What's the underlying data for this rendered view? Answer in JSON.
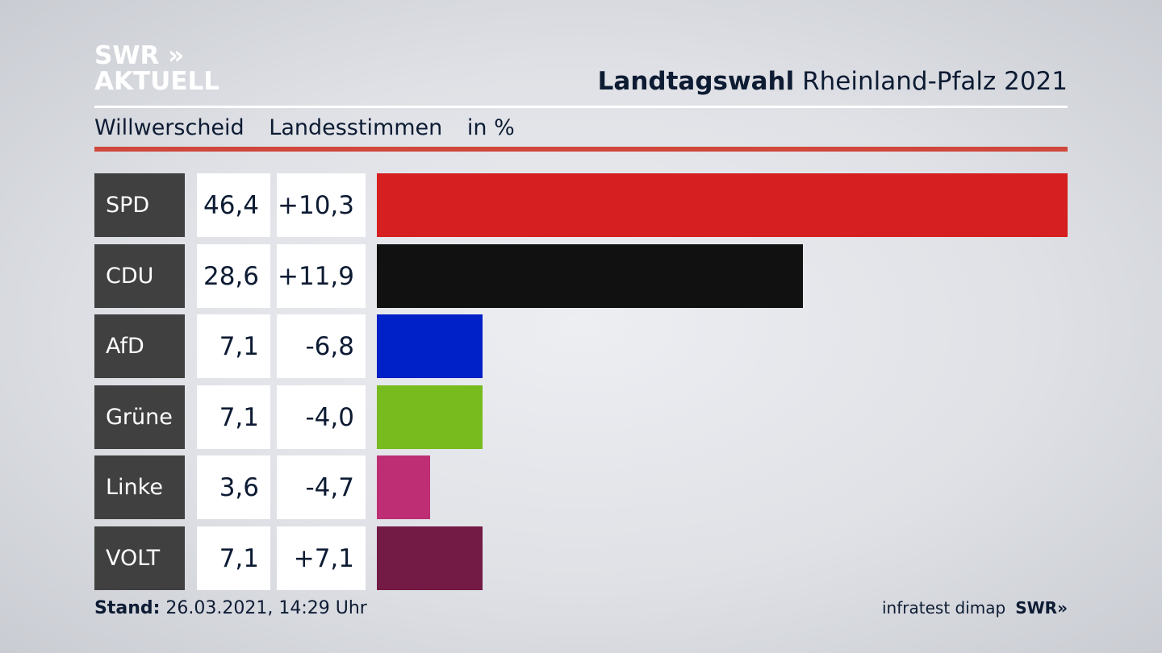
{
  "logo": {
    "line1": "SWR »",
    "line2": "AKTUELL"
  },
  "title": {
    "bold": "Landtagswahl",
    "rest": "Rheinland-Pfalz 2021"
  },
  "subtitle": {
    "place": "Willwerscheid",
    "kind": "Landesstimmen",
    "unit": "in %"
  },
  "footer": {
    "stand_label": "Stand:",
    "stand_value": "26.03.2021, 14:29 Uhr",
    "source": "infratest dimap",
    "brand": "SWR»"
  },
  "colors": {
    "accent_rule": "#d0473b",
    "label_bg": "#404040"
  },
  "chart_data": {
    "type": "bar",
    "orientation": "horizontal",
    "categories": [
      "SPD",
      "CDU",
      "AfD",
      "Grüne",
      "Linke",
      "VOLT"
    ],
    "values": [
      46.4,
      28.6,
      7.1,
      7.1,
      3.6,
      7.1
    ],
    "value_labels": [
      "46,4",
      "28,6",
      "7,1",
      "7,1",
      "3,6",
      "7,1"
    ],
    "diffs": [
      10.3,
      11.9,
      -6.8,
      -4.0,
      -4.7,
      7.1
    ],
    "diff_labels": [
      "+10,3",
      "+11,9",
      "-6,8",
      "-4,0",
      "-4,7",
      "+7,1"
    ],
    "colors": [
      "#d61f20",
      "#111111",
      "#0020c8",
      "#78bb1e",
      "#be2e74",
      "#731a45"
    ],
    "xlim": [
      0,
      46.4
    ],
    "grid": false
  }
}
